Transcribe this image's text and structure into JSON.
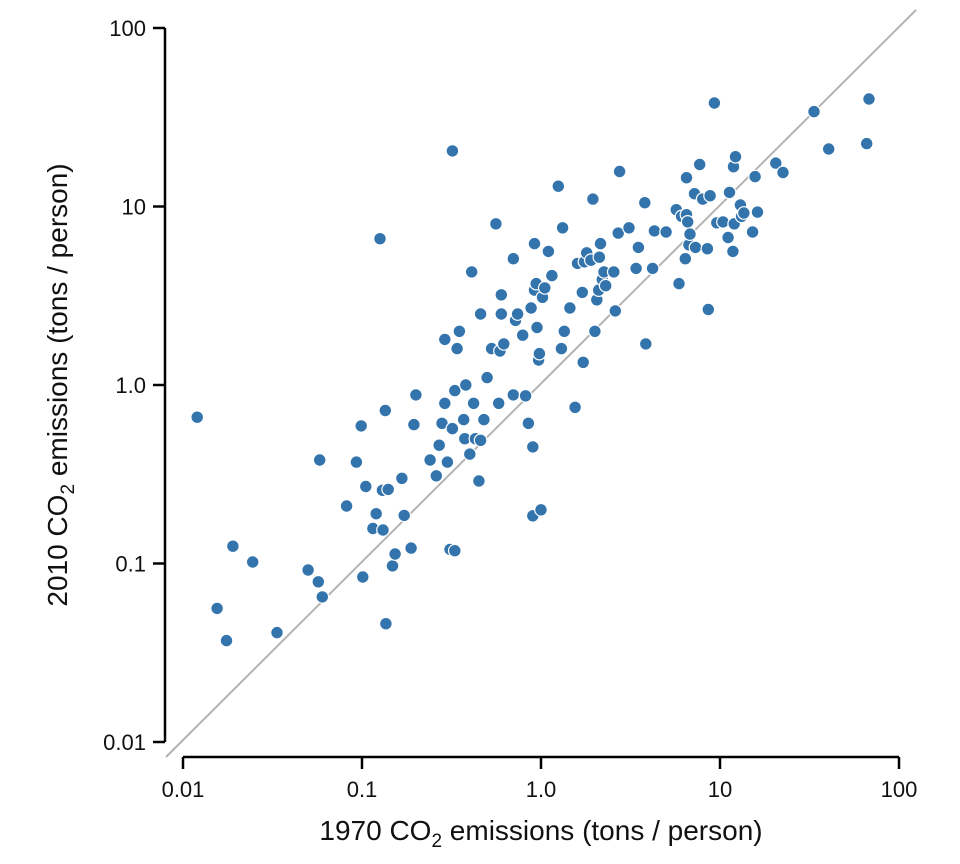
{
  "chart_data": {
    "type": "scatter",
    "title": "",
    "xlabel": {
      "pre": "1970 CO",
      "sub": "2",
      "post": " emissions (tons / person)"
    },
    "ylabel": {
      "pre": "2010 CO",
      "sub": "2",
      "post": " emissions (tons / person)"
    },
    "xscale": "log",
    "yscale": "log",
    "xlim": [
      0.01,
      100
    ],
    "ylim": [
      0.01,
      100
    ],
    "xticks": [
      {
        "value": 0.01,
        "label": "0.01"
      },
      {
        "value": 0.1,
        "label": "0.1"
      },
      {
        "value": 1,
        "label": "1.0"
      },
      {
        "value": 10,
        "label": "10"
      },
      {
        "value": 100,
        "label": "100"
      }
    ],
    "yticks": [
      {
        "value": 0.01,
        "label": "0.01"
      },
      {
        "value": 0.1,
        "label": "0.1"
      },
      {
        "value": 1,
        "label": "1.0"
      },
      {
        "value": 10,
        "label": "10"
      },
      {
        "value": 100,
        "label": "100"
      }
    ],
    "reference_line": "y = x",
    "grid": false,
    "colors": {
      "points": "#3474ad",
      "point_outline": "#ffffff",
      "reference_line": "#b3b3b3",
      "axis": "#000000"
    },
    "points": [
      [
        0.012,
        0.66
      ],
      [
        0.0155,
        0.056
      ],
      [
        0.0175,
        0.037
      ],
      [
        0.019,
        0.125
      ],
      [
        0.0245,
        0.102
      ],
      [
        0.0335,
        0.041
      ],
      [
        0.05,
        0.092
      ],
      [
        0.057,
        0.079
      ],
      [
        0.058,
        0.38
      ],
      [
        0.06,
        0.065
      ],
      [
        0.082,
        0.21
      ],
      [
        0.093,
        0.37
      ],
      [
        0.099,
        0.59
      ],
      [
        0.101,
        0.084
      ],
      [
        0.105,
        0.27
      ],
      [
        0.115,
        0.157
      ],
      [
        0.12,
        0.19
      ],
      [
        0.126,
        6.6
      ],
      [
        0.13,
        0.257
      ],
      [
        0.131,
        0.154
      ],
      [
        0.135,
        0.72
      ],
      [
        0.136,
        0.046
      ],
      [
        0.14,
        0.26
      ],
      [
        0.148,
        0.097
      ],
      [
        0.153,
        0.113
      ],
      [
        0.167,
        0.3
      ],
      [
        0.172,
        0.186
      ],
      [
        0.188,
        0.122
      ],
      [
        0.195,
        0.6
      ],
      [
        0.2,
        0.88
      ],
      [
        0.24,
        0.38
      ],
      [
        0.26,
        0.31
      ],
      [
        0.27,
        0.46
      ],
      [
        0.28,
        0.61
      ],
      [
        0.29,
        1.8
      ],
      [
        0.29,
        0.79
      ],
      [
        0.3,
        0.37
      ],
      [
        0.31,
        0.12
      ],
      [
        0.32,
        0.57
      ],
      [
        0.32,
        20.5
      ],
      [
        0.33,
        0.118
      ],
      [
        0.33,
        0.93
      ],
      [
        0.34,
        1.6
      ],
      [
        0.35,
        2.0
      ],
      [
        0.37,
        0.64
      ],
      [
        0.375,
        0.5
      ],
      [
        0.38,
        1.0
      ],
      [
        0.4,
        0.41
      ],
      [
        0.41,
        4.3
      ],
      [
        0.42,
        0.79
      ],
      [
        0.43,
        0.5
      ],
      [
        0.45,
        0.29
      ],
      [
        0.46,
        2.5
      ],
      [
        0.46,
        0.49
      ],
      [
        0.48,
        0.64
      ],
      [
        0.5,
        1.1
      ],
      [
        0.53,
        1.6
      ],
      [
        0.56,
        8.0
      ],
      [
        0.58,
        0.79
      ],
      [
        0.59,
        1.55
      ],
      [
        0.6,
        3.2
      ],
      [
        0.6,
        2.5
      ],
      [
        0.62,
        1.7
      ],
      [
        0.7,
        5.1
      ],
      [
        0.7,
        0.88
      ],
      [
        0.72,
        2.3
      ],
      [
        0.74,
        2.5
      ],
      [
        0.79,
        1.9
      ],
      [
        0.82,
        0.87
      ],
      [
        0.85,
        0.61
      ],
      [
        0.88,
        2.7
      ],
      [
        0.9,
        0.45
      ],
      [
        0.9,
        0.185
      ],
      [
        0.92,
        3.4
      ],
      [
        0.92,
        6.2
      ],
      [
        0.94,
        3.7
      ],
      [
        0.95,
        2.1
      ],
      [
        0.97,
        1.38
      ],
      [
        0.98,
        1.5
      ],
      [
        1.0,
        0.2
      ],
      [
        1.02,
        3.1
      ],
      [
        1.05,
        3.5
      ],
      [
        1.1,
        5.6
      ],
      [
        1.15,
        4.1
      ],
      [
        1.25,
        13.0
      ],
      [
        1.3,
        1.6
      ],
      [
        1.32,
        7.6
      ],
      [
        1.35,
        2.0
      ],
      [
        1.45,
        2.7
      ],
      [
        1.55,
        0.75
      ],
      [
        1.6,
        4.8
      ],
      [
        1.7,
        3.3
      ],
      [
        1.72,
        1.34
      ],
      [
        1.75,
        4.9
      ],
      [
        1.8,
        5.5
      ],
      [
        1.9,
        5.0
      ],
      [
        1.95,
        11.0
      ],
      [
        2.0,
        2.0
      ],
      [
        2.05,
        3.0
      ],
      [
        2.1,
        3.4
      ],
      [
        2.12,
        5.2
      ],
      [
        2.15,
        6.2
      ],
      [
        2.2,
        3.9
      ],
      [
        2.25,
        4.3
      ],
      [
        2.3,
        3.6
      ],
      [
        2.55,
        4.3
      ],
      [
        2.6,
        2.6
      ],
      [
        2.7,
        7.1
      ],
      [
        2.75,
        15.7
      ],
      [
        3.1,
        7.6
      ],
      [
        3.4,
        4.5
      ],
      [
        3.5,
        5.9
      ],
      [
        3.8,
        10.5
      ],
      [
        3.85,
        1.7
      ],
      [
        4.2,
        4.5
      ],
      [
        4.3,
        7.3
      ],
      [
        5.0,
        7.2
      ],
      [
        5.7,
        9.6
      ],
      [
        5.9,
        3.7
      ],
      [
        6.1,
        8.8
      ],
      [
        6.4,
        5.1
      ],
      [
        6.5,
        9.0
      ],
      [
        6.5,
        14.5
      ],
      [
        6.6,
        8.2
      ],
      [
        6.7,
        6.1
      ],
      [
        6.8,
        7.0
      ],
      [
        7.2,
        11.8
      ],
      [
        7.3,
        5.9
      ],
      [
        7.7,
        17.2
      ],
      [
        8.0,
        11.0
      ],
      [
        8.5,
        5.8
      ],
      [
        8.6,
        2.65
      ],
      [
        8.8,
        11.5
      ],
      [
        9.3,
        38.0
      ],
      [
        9.6,
        8.1
      ],
      [
        10.4,
        8.2
      ],
      [
        11.1,
        6.7
      ],
      [
        11.3,
        12.0
      ],
      [
        11.8,
        5.6
      ],
      [
        11.9,
        16.7
      ],
      [
        12.0,
        8.0
      ],
      [
        12.2,
        19.0
      ],
      [
        13.0,
        10.2
      ],
      [
        13.2,
        8.8
      ],
      [
        13.6,
        9.2
      ],
      [
        15.2,
        7.2
      ],
      [
        15.7,
        14.7
      ],
      [
        16.2,
        9.3
      ],
      [
        20.5,
        17.5
      ],
      [
        22.5,
        15.5
      ],
      [
        33.5,
        34.0
      ],
      [
        40.5,
        21.0
      ],
      [
        66.0,
        22.5
      ],
      [
        68.0,
        40.0
      ]
    ]
  }
}
